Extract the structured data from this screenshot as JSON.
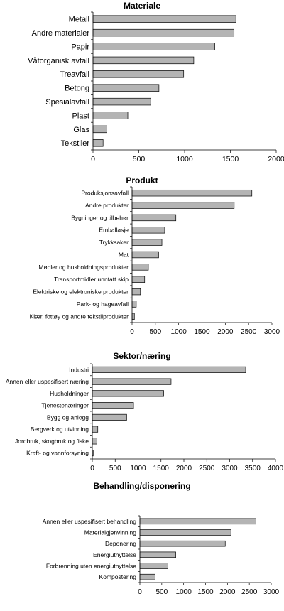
{
  "chart_data": [
    {
      "type": "bar",
      "orientation": "horizontal",
      "title": "Materiale",
      "categories": [
        "Metall",
        "Andre materialer",
        "Papir",
        "Våtorganisk avfall",
        "Treavfall",
        "Betong",
        "Spesialavfall",
        "Plast",
        "Glas",
        "Tekstiler"
      ],
      "values": [
        1560,
        1540,
        1330,
        1100,
        990,
        720,
        630,
        380,
        150,
        110
      ],
      "xlim": [
        0,
        2000
      ],
      "xticks": [
        0,
        500,
        1000,
        1500,
        2000
      ],
      "grid": false,
      "bar_color": "#b4b4b4"
    },
    {
      "type": "bar",
      "orientation": "horizontal",
      "title": "Produkt",
      "categories": [
        "Produksjonsavfall",
        "Andre produkter",
        "Bygninger og tilbehør",
        "Emballasje",
        "Trykksaker",
        "Mat",
        "Møbler og husholdningsprodukter",
        "Transportmidler unntatt skip",
        "Elektriske og elektroniske produkter",
        "Park- og hageavfall",
        "Klær, fottøy og andre tekstilprodukter"
      ],
      "values": [
        2570,
        2190,
        940,
        700,
        640,
        570,
        350,
        270,
        180,
        90,
        50
      ],
      "xlim": [
        0,
        3000
      ],
      "xticks": [
        0,
        500,
        1000,
        1500,
        2000,
        2500,
        3000
      ],
      "grid": false,
      "bar_color": "#b4b4b4"
    },
    {
      "type": "bar",
      "orientation": "horizontal",
      "title": "Sektor/næring",
      "categories": [
        "Industri",
        "Annen eller uspesifisert næring",
        "Husholdninger",
        "Tjenestenæringer",
        "Bygg og anlegg",
        "Bergverk og utvinning",
        "Jordbruk, skogbruk og fiske",
        "Kraft- og vannforsyning"
      ],
      "values": [
        3350,
        1720,
        1560,
        900,
        750,
        120,
        100,
        20
      ],
      "xlim": [
        0,
        4000
      ],
      "xticks": [
        0,
        500,
        1000,
        1500,
        2000,
        2500,
        3000,
        3500,
        4000
      ],
      "grid": false,
      "bar_color": "#b4b4b4"
    },
    {
      "type": "bar",
      "orientation": "horizontal",
      "title": "Behandling/disponering",
      "categories": [
        "Annen eller uspesifisert behandling",
        "Materialgjenvinning",
        "Deponering",
        "Energiutnyttelse",
        "Forbrenning uten energiutnyttelse",
        "Kompostering"
      ],
      "values": [
        2650,
        2080,
        1950,
        820,
        640,
        350
      ],
      "xlim": [
        0,
        3000
      ],
      "xticks": [
        0,
        500,
        1000,
        1500,
        2000,
        2500,
        3000
      ],
      "grid": false,
      "bar_color": "#b4b4b4"
    }
  ]
}
